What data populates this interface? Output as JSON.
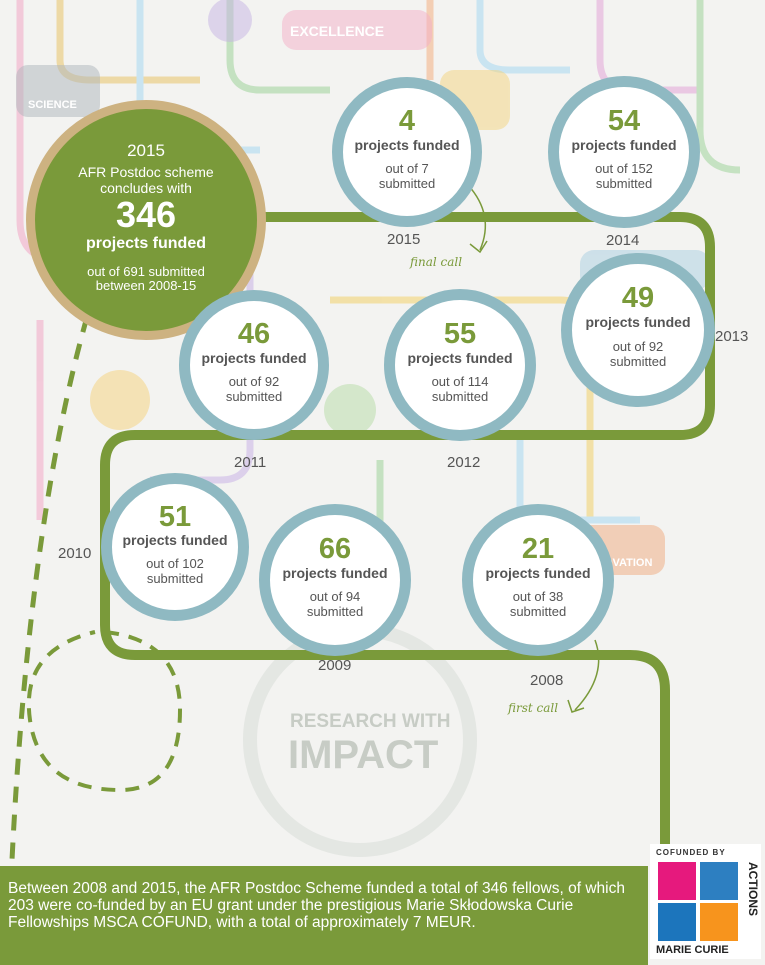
{
  "highlight": {
    "year": "2015",
    "headline": "AFR Postdoc scheme concludes with",
    "value": "346",
    "funded_label": "projects funded",
    "submitted_text": "out of 691 submitted between 2008-15"
  },
  "chart_data": {
    "type": "table",
    "columns": [
      "year",
      "projects funded",
      "submitted"
    ],
    "rows": [
      {
        "year": "2015",
        "funded": "4",
        "submitted": "out of 7 submitted"
      },
      {
        "year": "2014",
        "funded": "54",
        "submitted": "out of 152 submitted"
      },
      {
        "year": "2013",
        "funded": "49",
        "submitted": "out of 92 submitted"
      },
      {
        "year": "2012",
        "funded": "55",
        "submitted": "out of 114 submitted"
      },
      {
        "year": "2011",
        "funded": "46",
        "submitted": "out of 92 submitted"
      },
      {
        "year": "2010",
        "funded": "51",
        "submitted": "out of 102 submitted"
      },
      {
        "year": "2009",
        "funded": "66",
        "submitted": "out of 94 submitted"
      },
      {
        "year": "2008",
        "funded": "21",
        "submitted": "out of 38 submitted"
      }
    ],
    "funded_label": "projects funded"
  },
  "annotations": {
    "final_call": "final call",
    "first_call": "first call"
  },
  "background": {
    "labels": [
      "SCIENCE",
      "EXCELLENCE",
      "RESEARCH WITH",
      "IMPACT",
      "INNOVATION"
    ]
  },
  "footer": {
    "text": "Between 2008 and 2015, the AFR Postdoc Scheme funded a total of 346 fellows, of which 203 were co-funded by an EU grant under the prestigious Marie Skłodowska Curie Fellowships MSCA COFUND, with a total of approximately 7 MEUR."
  },
  "logo": {
    "top": "COFUNDED BY",
    "side": "ACTIONS",
    "bottom": "MARIE CURIE"
  },
  "colors": {
    "green": "#7a9a3a",
    "ring": "#8fb9c2",
    "gold": "#cdb281"
  }
}
